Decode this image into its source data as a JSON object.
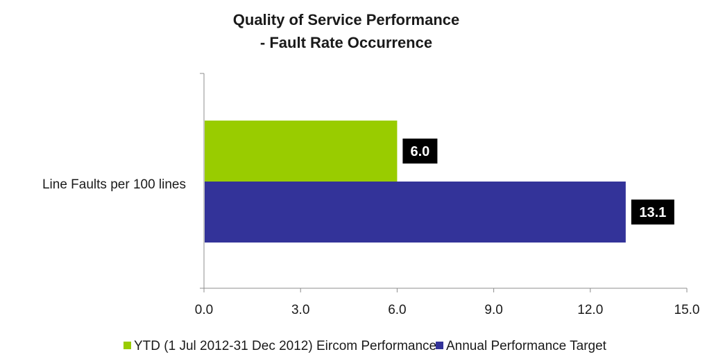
{
  "chart_data": {
    "type": "bar",
    "orientation": "horizontal",
    "title_lines": [
      "Quality of Service Performance",
      "- Fault Rate Occurrence"
    ],
    "categories": [
      "Line Faults per 100 lines"
    ],
    "series": [
      {
        "name": "YTD (1 Jul 2012-31 Dec 2012) Eircom Performance",
        "values": [
          6.0
        ],
        "color": "#99cc00"
      },
      {
        "name": "Annual Performance Target",
        "values": [
          13.1
        ],
        "color": "#333399"
      }
    ],
    "data_labels": [
      "6.0",
      "13.1"
    ],
    "xlim": [
      0,
      15
    ],
    "xticks": [
      "0.0",
      "3.0",
      "6.0",
      "9.0",
      "12.0",
      "15.0"
    ],
    "xtick_values": [
      0,
      3,
      6,
      9,
      12,
      15
    ],
    "grid": false,
    "legend_position": "bottom",
    "label_box_color": "#000000"
  }
}
